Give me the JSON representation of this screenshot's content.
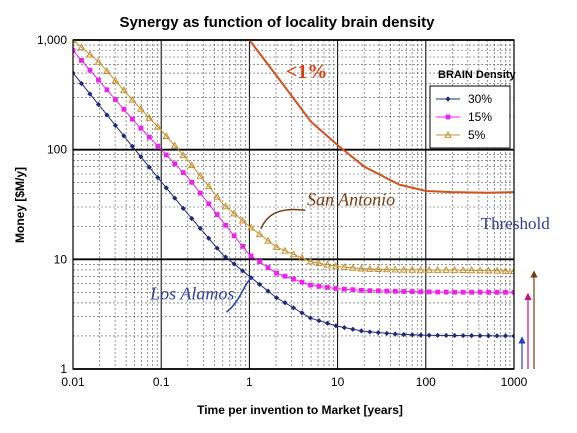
{
  "chart_data": {
    "type": "line",
    "title": "Synergy as function of locality brain density",
    "xlabel": "Time per invention to Market [years]",
    "ylabel": "Money [$M/y]",
    "x_scale": "log",
    "y_scale": "log",
    "xlim": [
      0.01,
      1000
    ],
    "ylim": [
      1,
      1000
    ],
    "grid": true,
    "x_ticks": [
      {
        "value": 0.01,
        "label": "0.01"
      },
      {
        "value": 0.1,
        "label": "0.1"
      },
      {
        "value": 1,
        "label": "1"
      },
      {
        "value": 10,
        "label": "10"
      },
      {
        "value": 100,
        "label": "100"
      },
      {
        "value": 1000,
        "label": "1000"
      }
    ],
    "y_ticks": [
      {
        "value": 1,
        "label": "1"
      },
      {
        "value": 10,
        "label": "10"
      },
      {
        "value": 100,
        "label": "100"
      },
      {
        "value": 1000,
        "label": "1,000"
      }
    ],
    "legend": {
      "title": "BRAIN Density",
      "placement": "top-right",
      "entries": [
        {
          "label": "30%",
          "color": "#1f2a7a",
          "marker": "diamond"
        },
        {
          "label": "15%",
          "color": "#ee22ee",
          "marker": "square"
        },
        {
          "label": "5%",
          "color": "#c8902a",
          "marker": "triangle"
        }
      ]
    },
    "series": [
      {
        "name": "30%",
        "color": "#1f2a7a",
        "marker": "diamond",
        "x": [
          0.01,
          0.02,
          0.05,
          0.1,
          0.2,
          0.5,
          1,
          2,
          5,
          10,
          20,
          50,
          100,
          200,
          500,
          1000
        ],
        "y": [
          500,
          251,
          101,
          51,
          26,
          11,
          7,
          4.5,
          2.9,
          2.45,
          2.2,
          2.07,
          2.03,
          2.02,
          2.01,
          2.0
        ]
      },
      {
        "name": "15%",
        "color": "#ee22ee",
        "marker": "square",
        "x": [
          0.01,
          0.02,
          0.05,
          0.1,
          0.2,
          0.5,
          1,
          2,
          5,
          10,
          20,
          50,
          100,
          200,
          500,
          1000
        ],
        "y": [
          800,
          420,
          180,
          100,
          56,
          22,
          11,
          7.5,
          5.8,
          5.4,
          5.2,
          5.1,
          5.05,
          5.02,
          5.01,
          5.0
        ]
      },
      {
        "name": "5%",
        "color": "#c8902a",
        "marker": "triangle",
        "x": [
          0.01,
          0.02,
          0.05,
          0.1,
          0.2,
          0.5,
          1,
          2,
          5,
          10,
          20,
          50,
          100,
          200,
          500,
          1000
        ],
        "y": [
          1000,
          620,
          270,
          150,
          80,
          32,
          20,
          13,
          9.5,
          8.6,
          8.2,
          8.05,
          8.0,
          8.0,
          7.9,
          7.8
        ]
      },
      {
        "name": "",
        "color": "#d3501f",
        "marker": "none",
        "x": [
          1,
          2,
          5,
          10,
          20,
          50,
          100,
          200,
          500,
          1000
        ],
        "y": [
          1000,
          480,
          180,
          110,
          70,
          48,
          42,
          41,
          40.5,
          41
        ]
      }
    ],
    "annotations": [
      {
        "text": "<1%",
        "x": 2.6,
        "y": 450
      },
      {
        "text": "San Antonio",
        "x": 4.5,
        "y": 31
      },
      {
        "text": "Los Alamos",
        "x": 0.075,
        "y": 4.3
      },
      {
        "text": "Threshold",
        "x": 420,
        "y": 19
      }
    ],
    "threshold_arrows": [
      {
        "value": 2,
        "color": "#2040c0"
      },
      {
        "value": 5,
        "color": "#cc1177"
      },
      {
        "value": 8,
        "color": "#7a3b12"
      }
    ]
  }
}
